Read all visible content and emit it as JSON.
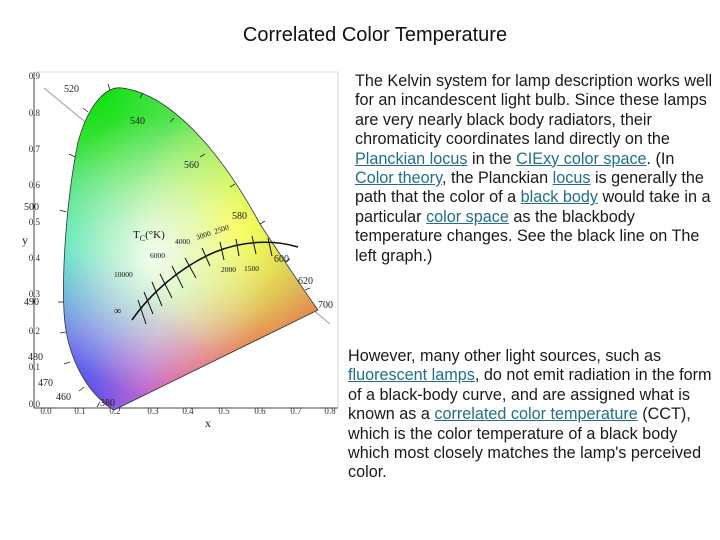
{
  "title": "Correlated Color Temperature",
  "diagram": {
    "x_axis_label": "x",
    "y_axis_label": "y",
    "x_ticks": [
      "0.0",
      "0.1",
      "0.2",
      "0.3",
      "0.4",
      "0.5",
      "0.6",
      "0.7",
      "0.8"
    ],
    "y_ticks": [
      "0.0",
      "0.1",
      "0.2",
      "0.3",
      "0.4",
      "0.5",
      "0.6",
      "0.7",
      "0.8",
      "0.9"
    ],
    "wavelength_labels": {
      "w520": "520",
      "w540": "540",
      "w560": "560",
      "w580": "580",
      "w600": "600",
      "w620": "620",
      "w700": "700",
      "w500": "500",
      "w490": "490",
      "w480": "480",
      "w470": "470",
      "w460": "460",
      "w380": "380"
    },
    "tc_label": "T",
    "tc_subscript": "C",
    "tc_unit": "(°K)",
    "temperature_labels": {
      "t10000": "10000",
      "t6000": "6000",
      "t4000": "4000",
      "t3000": "3000",
      "t2500": "2500",
      "t2000": "2000",
      "t1500": "1500",
      "tinf": "∞"
    },
    "colors": {
      "axis": "#444444",
      "locus_line": "#111111",
      "boundary": "#999999"
    }
  },
  "paragraph1": {
    "t1": "The Kelvin system for lamp description works well for an incandescent light bulb. Since these lamps are very nearly black body radiators, their chromaticity coordinates land directly on the ",
    "l1": "Planckian locus",
    "t2": " in the ",
    "l2": "CIExy color space",
    "t3": ". (In ",
    "l3": "Color theory",
    "t4": ", the Planckian ",
    "l4": "locus",
    "t5": " is generally the path that the color of a ",
    "l5": "black body",
    "t6": " would take in a particular ",
    "l6": "color space",
    "t7": " as the blackbody temperature changes. See the black line on The left graph.)"
  },
  "paragraph2": {
    "t1": "However, many other light sources, such as ",
    "l1": "fluorescent lamps",
    "t2": ", do not emit radiation in the form of a black-body curve, and are assigned what is known as a ",
    "l2": "correlated color temperature",
    "t3": " (CCT), which is the color temperature of a black body which most closely matches the lamp's perceived color."
  }
}
